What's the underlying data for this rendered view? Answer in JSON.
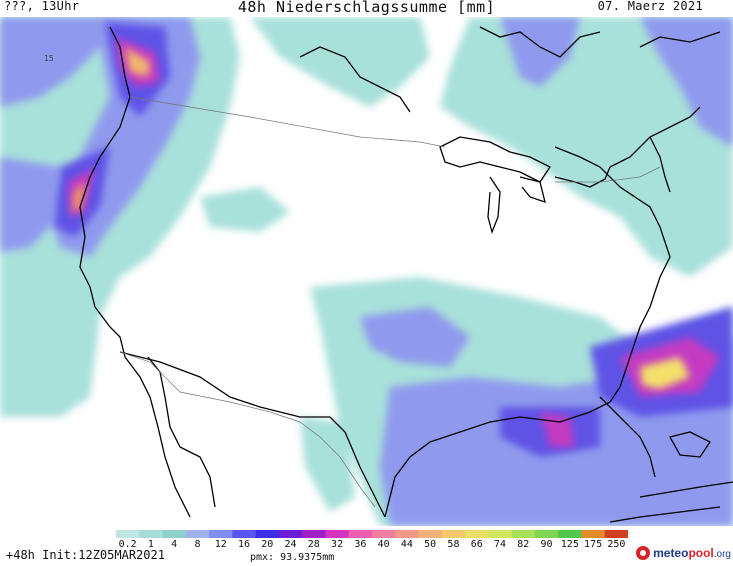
{
  "header": {
    "left": "???, 13Uhr",
    "title": "48h Niederschlagssumme [mm]",
    "right": "07. Maerz 2021"
  },
  "map_labels": {
    "contour_15": "15"
  },
  "legend": {
    "ticks": [
      "0.2",
      "1",
      "4",
      "8",
      "12",
      "16",
      "20",
      "24",
      "28",
      "32",
      "36",
      "40",
      "44",
      "50",
      "58",
      "66",
      "74",
      "82",
      "90",
      "125",
      "175",
      "250"
    ],
    "colors": [
      "#bfe6e2",
      "#a7ddd6",
      "#8fd0cd",
      "#9fb2ee",
      "#7f8ff0",
      "#5a55ee",
      "#3f2ee8",
      "#6a1fd6",
      "#a220c8",
      "#d434c0",
      "#ee5fb2",
      "#ee7f9e",
      "#f29a8a",
      "#f4b27a",
      "#f3c96c",
      "#e9de66",
      "#cfe85e",
      "#a8e05a",
      "#7ed552",
      "#52c74a",
      "#e08a2a",
      "#d0401f"
    ]
  },
  "footer": {
    "init": "+48h Init:12Z05MAR2021",
    "pmx": "pmx: 93.9375mm"
  },
  "logo": {
    "meteo": "meteo",
    "pool": "pool",
    "org": ".org"
  }
}
